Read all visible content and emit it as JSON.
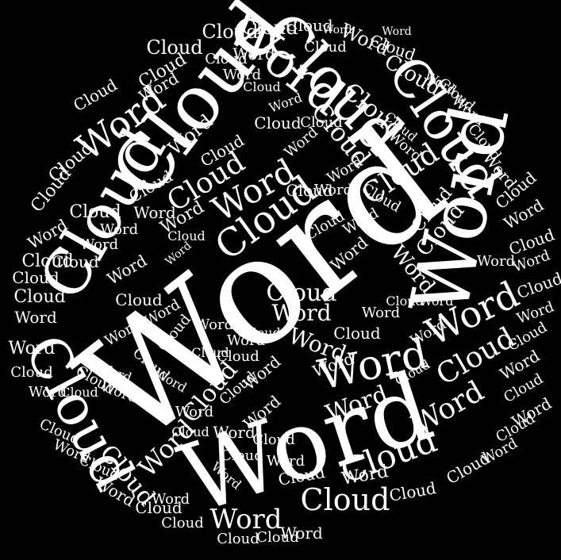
{
  "words": {
    "word": "Word",
    "cloud": "Cloud"
  },
  "colors": {
    "background": "#000000",
    "text": "#ffffff"
  },
  "counts": {
    "word": 66,
    "cloud": 84
  }
}
